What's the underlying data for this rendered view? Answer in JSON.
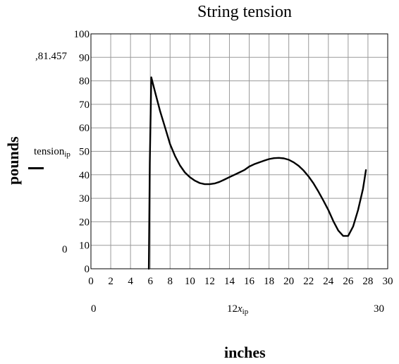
{
  "chart_data": {
    "type": "line",
    "title": "String tension",
    "xlabel": "inches",
    "ylabel": "pounds",
    "xlim": [
      0,
      30
    ],
    "ylim": [
      0,
      100
    ],
    "x_ticks": [
      "0",
      "2",
      "4",
      "6",
      "8",
      "10",
      "12",
      "14",
      "16",
      "18",
      "20",
      "22",
      "24",
      "26",
      "28",
      "30"
    ],
    "y_ticks": [
      "0",
      "10",
      "20",
      "30",
      "40",
      "50",
      "60",
      "70",
      "80",
      "90",
      "100"
    ],
    "grid": true,
    "series": [
      {
        "name": "tension_ip",
        "color": "#000000",
        "x": [
          5.85,
          5.95,
          6.1,
          6.5,
          7.0,
          7.5,
          8.0,
          8.5,
          9.0,
          9.5,
          10.0,
          10.5,
          11.0,
          11.5,
          12.0,
          12.5,
          13.0,
          13.5,
          14.0,
          14.5,
          15.0,
          15.5,
          16.0,
          16.5,
          17.0,
          17.5,
          18.0,
          18.5,
          19.0,
          19.5,
          20.0,
          20.5,
          21.0,
          21.5,
          22.0,
          22.5,
          23.0,
          23.5,
          24.0,
          24.5,
          25.0,
          25.5,
          26.0,
          26.5,
          27.0,
          27.5,
          27.8
        ],
        "y": [
          0,
          45,
          81.5,
          75,
          67,
          60,
          53,
          48,
          44,
          41,
          39,
          37.5,
          36.5,
          36,
          36,
          36.3,
          37,
          38,
          39,
          40,
          41,
          42,
          43.5,
          44.5,
          45.3,
          46,
          46.7,
          47.1,
          47.2,
          47,
          46.4,
          45.3,
          43.8,
          41.8,
          39.3,
          36.3,
          32.8,
          29,
          25,
          20.3,
          16.3,
          14,
          14,
          18,
          25,
          34,
          42
        ]
      }
    ]
  },
  "annotations": {
    "marker_value": ",81.457",
    "marker_zero": "0",
    "x_readout_left": "0",
    "x_readout_mid": "12",
    "x_readout_var": "x",
    "x_readout_sub": "ip",
    "x_readout_right": "30",
    "y_trace_name": "tension",
    "y_trace_sub": "ip"
  }
}
